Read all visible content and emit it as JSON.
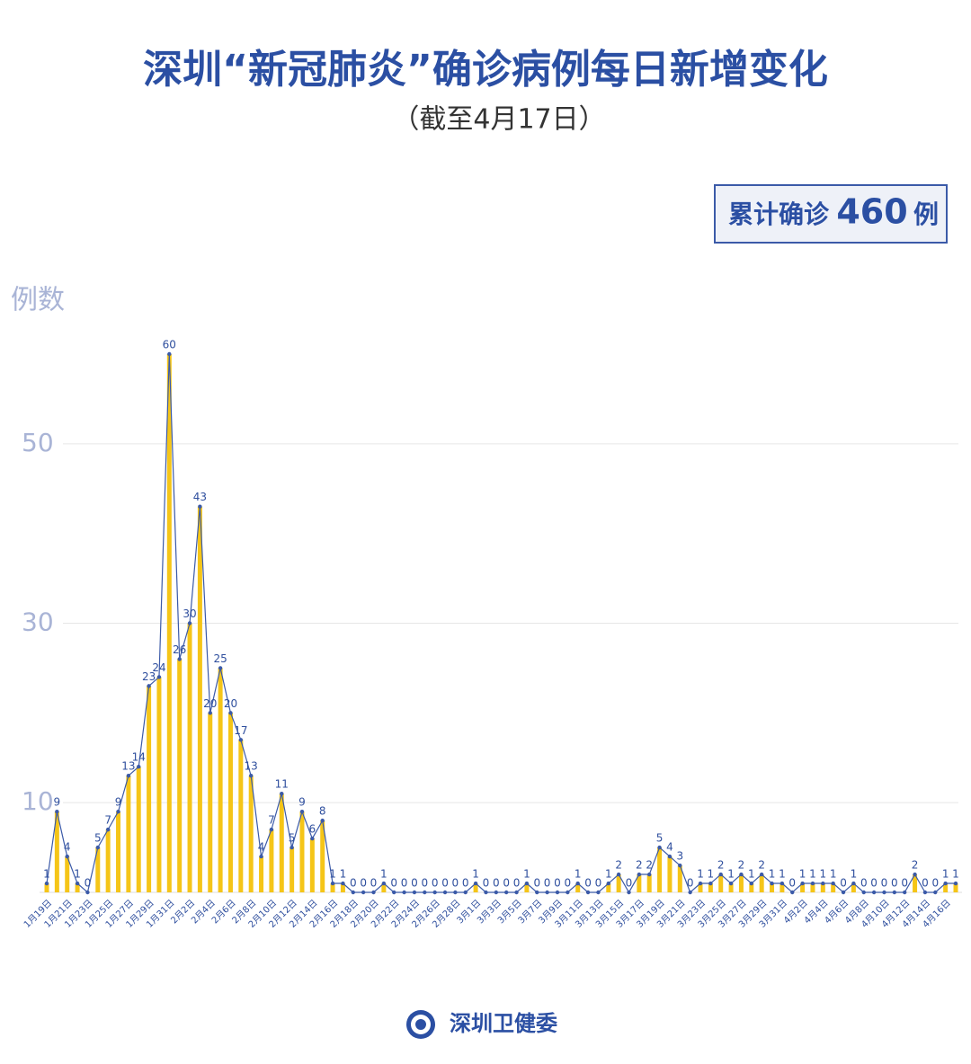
{
  "title": "深圳“新冠肺炎”确诊病例每日新增变化",
  "subtitle": "（截至4月17日）",
  "summary": {
    "label": "累计确诊",
    "value": 460,
    "unit": "例"
  },
  "footer": "深圳卫健委",
  "chart_data": {
    "type": "bar",
    "y_label": "例数",
    "color": "#f5c518",
    "line_color": "#3b5aa8",
    "label_color": "#2f4f9e",
    "ylim": [
      0,
      60
    ],
    "yticks": [
      10,
      30,
      50
    ],
    "grid": true,
    "categories": [
      "1月19日",
      null,
      "1月21日",
      null,
      "1月23日",
      null,
      "1月25日",
      null,
      "1月27日",
      null,
      "1月29日",
      null,
      "1月31日",
      null,
      "2月2日",
      null,
      "2月4日",
      null,
      "2月6日",
      null,
      "2月8日",
      null,
      "2月10日",
      null,
      "2月12日",
      null,
      "2月14日",
      null,
      "2月16日",
      null,
      "2月18日",
      null,
      "2月20日",
      null,
      "2月22日",
      null,
      "2月24日",
      null,
      "2月26日",
      null,
      "2月28日",
      null,
      "3月1日",
      null,
      "3月3日",
      null,
      "3月5日",
      null,
      "3月7日",
      null,
      "3月9日",
      null,
      "3月11日",
      null,
      "3月13日",
      null,
      "3月15日",
      null,
      "3月17日",
      null,
      "3月19日",
      null,
      "3月21日",
      null,
      "3月23日",
      null,
      "3月25日",
      null,
      "3月27日",
      null,
      "3月29日",
      null,
      "3月31日",
      null,
      "4月2日",
      null,
      "4月4日",
      null,
      "4月6日",
      null,
      "4月8日",
      null,
      "4月10日",
      null,
      "4月12日",
      null,
      "4月14日",
      null,
      "4月16日",
      null
    ],
    "values": [
      1,
      9,
      4,
      1,
      0,
      5,
      7,
      9,
      13,
      14,
      23,
      24,
      60,
      26,
      30,
      43,
      20,
      25,
      20,
      17,
      13,
      4,
      7,
      11,
      5,
      9,
      6,
      8,
      1,
      1,
      0,
      0,
      0,
      1,
      0,
      0,
      0,
      0,
      0,
      0,
      0,
      0,
      1,
      0,
      0,
      0,
      0,
      1,
      0,
      0,
      0,
      0,
      1,
      0,
      0,
      1,
      2,
      0,
      2,
      2,
      5,
      4,
      3,
      0,
      1,
      1,
      2,
      1,
      2,
      1,
      2,
      1,
      1,
      0,
      1,
      1,
      1,
      1,
      0,
      1,
      0,
      0,
      0,
      0,
      0,
      2,
      0,
      0,
      1,
      1
    ]
  }
}
